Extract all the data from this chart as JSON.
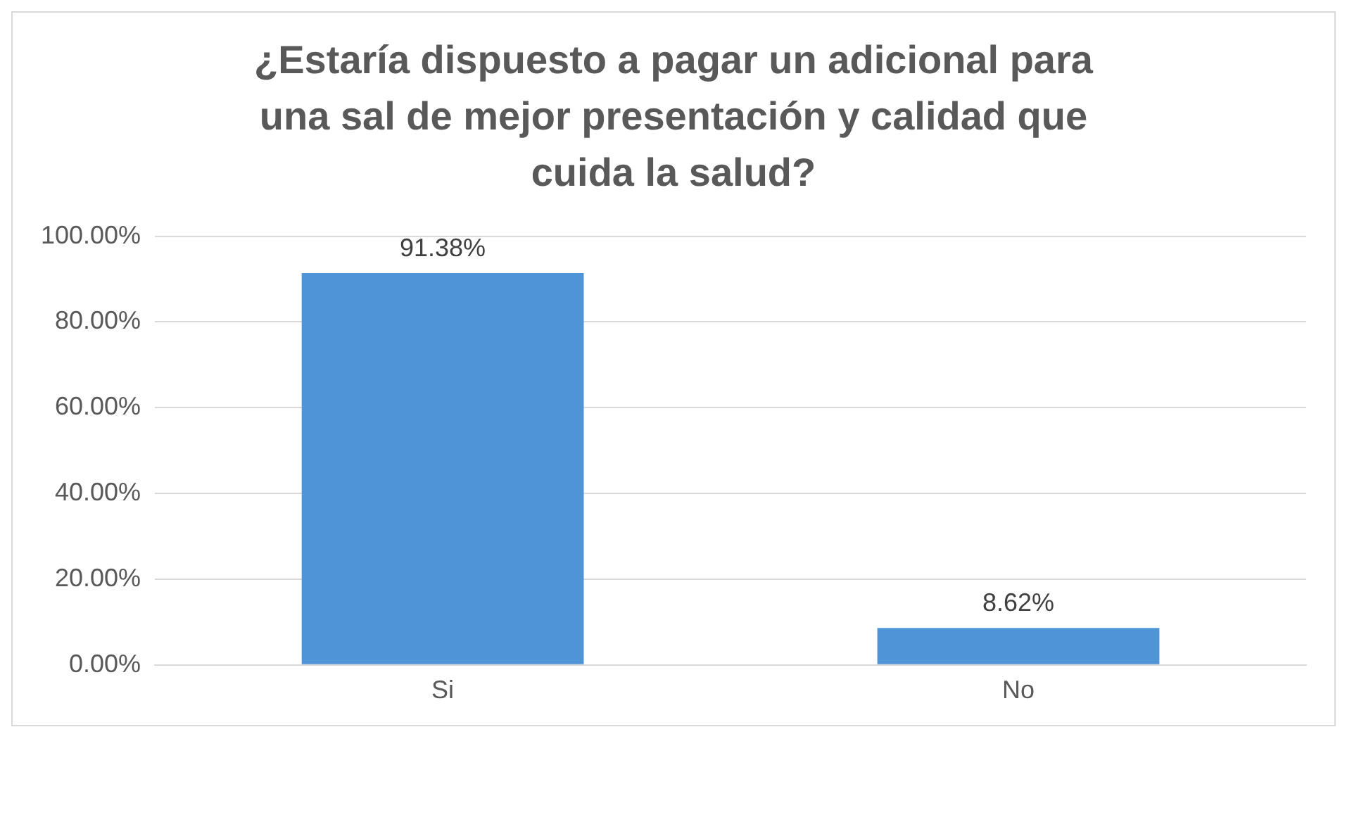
{
  "chart_data": {
    "type": "bar",
    "title": "¿Estaría dispuesto a pagar un adicional para una sal de mejor presentación y calidad que cuida la salud?",
    "categories": [
      "Si",
      "No"
    ],
    "values": [
      91.38,
      8.62
    ],
    "value_labels": [
      "91.38%",
      "8.62%"
    ],
    "color": "#5094d8",
    "ylim": [
      0,
      100
    ],
    "yticks": [
      {
        "value": 0,
        "label": "0.00%"
      },
      {
        "value": 20,
        "label": "20.00%"
      },
      {
        "value": 40,
        "label": "40.00%"
      },
      {
        "value": 60,
        "label": "60.00%"
      },
      {
        "value": 80,
        "label": "80.00%"
      },
      {
        "value": 100,
        "label": "100.00%"
      }
    ],
    "grid": "y",
    "legend": false
  }
}
